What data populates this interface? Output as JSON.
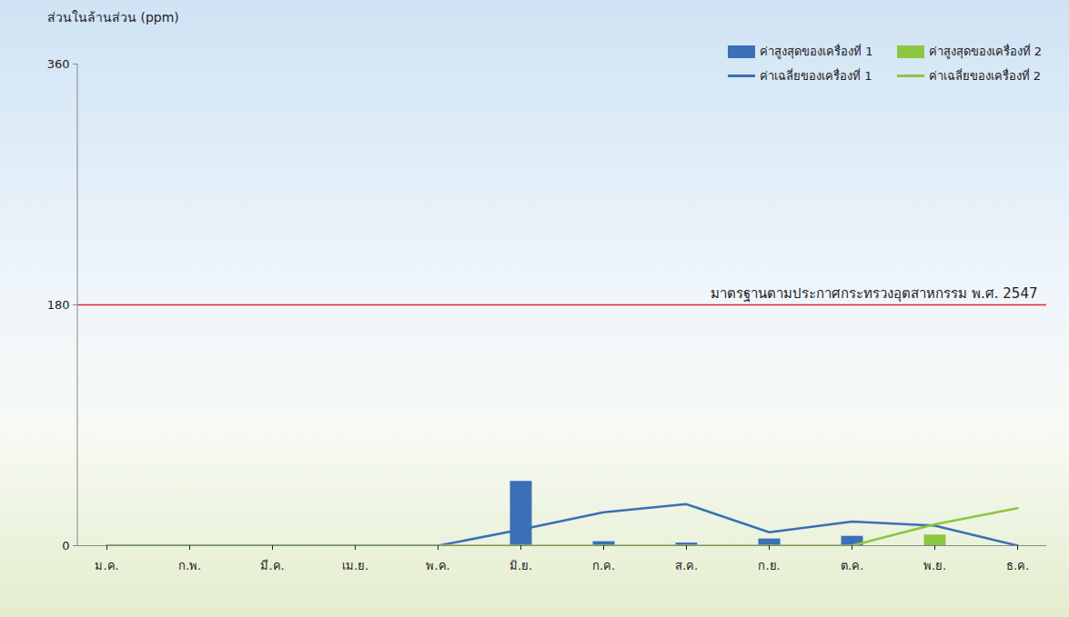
{
  "chart_data": {
    "type": "bar",
    "y_label": "ส่วนในล้านส่วน (ppm)",
    "categories": [
      "ม.ค.",
      "ก.พ.",
      "มี.ค.",
      "เม.ย.",
      "พ.ค.",
      "มิ.ย.",
      "ก.ค.",
      "ส.ค.",
      "ก.ย.",
      "ต.ค.",
      "พ.ย.",
      "ธ.ค."
    ],
    "series": [
      {
        "name": "ค่าสูงสุดของเครื่องที่ 1",
        "type": "bar",
        "color": "#3b6fb6",
        "values": [
          0,
          0,
          0,
          0,
          0,
          48,
          3,
          2,
          5,
          7,
          0,
          0
        ]
      },
      {
        "name": "ค่าสูงสุดของเครื่องที่ 2",
        "type": "bar",
        "color": "#8dc63f",
        "values": [
          0,
          0,
          0,
          0,
          0,
          0,
          0,
          0,
          0,
          0,
          8,
          0
        ]
      },
      {
        "name": "ค่าเฉลี่ยของเครื่องที่ 1",
        "type": "line",
        "color": "#3b6fb6",
        "values": [
          0,
          0,
          0,
          0,
          0,
          12,
          25,
          31,
          10,
          18,
          15,
          0
        ]
      },
      {
        "name": "ค่าเฉลี่ยของเครื่องที่ 2",
        "type": "line",
        "color": "#8dc63f",
        "values": [
          0,
          0,
          0,
          0,
          0,
          0,
          0,
          0,
          0,
          0,
          16,
          28
        ]
      }
    ],
    "ylim": [
      0,
      360
    ],
    "yticks": [
      0,
      180,
      360
    ],
    "grid": false,
    "legend": "top-right",
    "annotations": [
      {
        "text": "มาตรฐานตามประกาศกระทรวงอุตสาหกรรม พ.ศ. 2547",
        "y": 180,
        "color": "#e5262b"
      }
    ]
  }
}
